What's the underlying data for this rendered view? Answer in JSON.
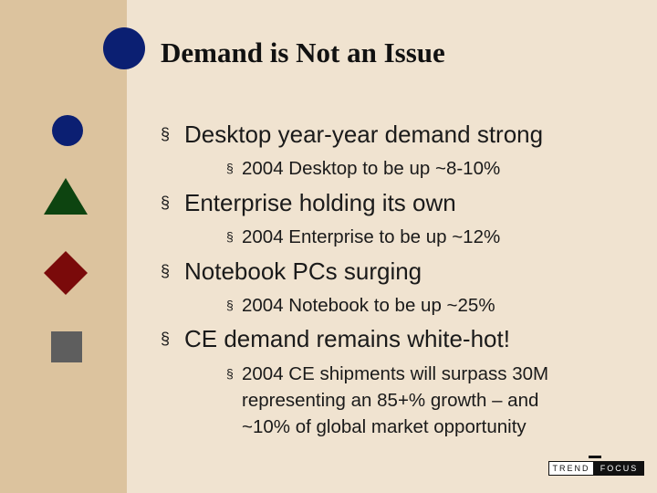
{
  "slide": {
    "title": "Demand is Not an Issue",
    "bullet_marker": "§",
    "bullets": [
      {
        "text": "Desktop year-year demand strong",
        "sub": [
          "2004 Desktop to be up ~8-10%"
        ]
      },
      {
        "text": "Enterprise holding its own",
        "sub": [
          "2004 Enterprise to be up ~12%"
        ]
      },
      {
        "text": "Notebook PCs surging",
        "sub": [
          "2004 Notebook to be up ~25%"
        ]
      },
      {
        "text": "CE demand remains white-hot!",
        "sub": [
          "2004 CE shipments will surpass 30M",
          "representing an 85+% growth – and",
          "~10% of global market opportunity"
        ]
      }
    ]
  },
  "logo": {
    "left": "TREND",
    "right": "FOCUS"
  },
  "colors": {
    "sidebar": "#dcc39e",
    "background": "#f0e3d0",
    "circle": "#0b1f72",
    "triangle": "#0d4410",
    "diamond": "#7a0a0a",
    "square": "#5e5e5e"
  },
  "shapes": [
    "blue-circle-icon",
    "green-triangle-icon",
    "red-diamond-icon",
    "gray-square-icon"
  ]
}
